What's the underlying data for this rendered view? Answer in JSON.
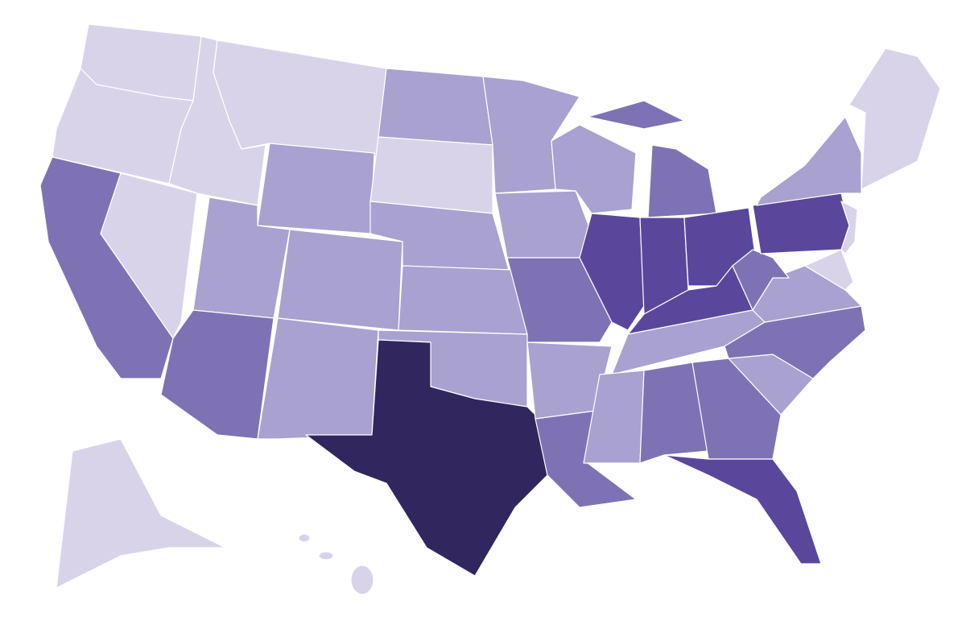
{
  "palette": [
    "#d9d3ea",
    "#a9a1cf",
    "#7f72b4",
    "#5a479c",
    "#32265e"
  ]
}
